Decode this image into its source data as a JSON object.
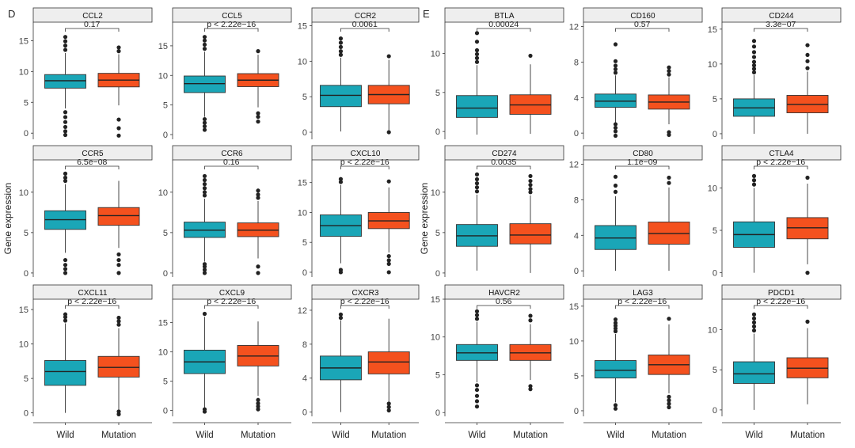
{
  "figure": {
    "colors": {
      "wild": "#1AA6B7",
      "mutation": "#F4511E",
      "strip": "#eeeeee",
      "box_stroke": "#333333"
    },
    "x_labels": [
      "Wild",
      "Mutation"
    ]
  },
  "chart_data": [
    {
      "panel_letter": "D",
      "ylabel": "Gene expression",
      "type": "boxplot",
      "categories": [
        "Wild",
        "Mutation"
      ],
      "facets": [
        {
          "title": "CCL2",
          "pvalue": "0.17",
          "ylim": [
            -1,
            18
          ],
          "ticks": [
            0,
            5,
            10,
            15
          ],
          "boxes": [
            {
              "name": "Wild",
              "q1": 7.3,
              "median": 8.5,
              "q3": 9.5,
              "whisker_low": 4,
              "whisker_high": 13,
              "outliers": [
                -0.3,
                0.3,
                1,
                1.8,
                2.6,
                3.4,
                13.5,
                14.2,
                14.9,
                15.6
              ]
            },
            {
              "name": "Mutation",
              "q1": 7.5,
              "median": 8.6,
              "q3": 9.7,
              "whisker_low": 4.5,
              "whisker_high": 12.8,
              "outliers": [
                -0.4,
                0.8,
                2.2,
                13.3,
                13.9
              ]
            }
          ]
        },
        {
          "title": "CCL5",
          "pvalue": "p < 2.22e−16",
          "ylim": [
            -0.8,
            19
          ],
          "ticks": [
            0,
            5,
            10,
            15
          ],
          "boxes": [
            {
              "name": "Wild",
              "q1": 7.1,
              "median": 8.6,
              "q3": 9.9,
              "whisker_low": 3,
              "whisker_high": 14,
              "outliers": [
                0.8,
                1.4,
                2,
                2.6,
                14.5,
                15.2,
                15.9,
                16.5
              ]
            },
            {
              "name": "Mutation",
              "q1": 8.1,
              "median": 9.2,
              "q3": 10.3,
              "whisker_low": 4.6,
              "whisker_high": 13.5,
              "outliers": [
                2.2,
                3,
                3.6,
                14.1
              ]
            }
          ]
        },
        {
          "title": "CCR2",
          "pvalue": "0.0061",
          "ylim": [
            -1,
            15.5
          ],
          "ticks": [
            0,
            5,
            10,
            15
          ],
          "boxes": [
            {
              "name": "Wild",
              "q1": 3.6,
              "median": 5.2,
              "q3": 6.6,
              "whisker_low": 0.1,
              "whisker_high": 10.5,
              "outliers": [
                10.9,
                11.4,
                12,
                12.6,
                13.2
              ]
            },
            {
              "name": "Mutation",
              "q1": 4,
              "median": 5.3,
              "q3": 6.6,
              "whisker_low": 0.3,
              "whisker_high": 10.2,
              "outliers": [
                0,
                10.7
              ]
            }
          ]
        },
        {
          "title": "CCR5",
          "pvalue": "6.5e−08",
          "ylim": [
            -0.5,
            14
          ],
          "ticks": [
            0,
            5,
            10
          ],
          "boxes": [
            {
              "name": "Wild",
              "q1": 5.4,
              "median": 6.6,
              "q3": 7.7,
              "whisker_low": 2.5,
              "whisker_high": 11,
              "outliers": [
                0,
                0.5,
                1,
                1.6,
                11.4,
                11.8,
                12.3
              ]
            },
            {
              "name": "Mutation",
              "q1": 5.9,
              "median": 7.1,
              "q3": 8.1,
              "whisker_low": 3.1,
              "whisker_high": 11.4,
              "outliers": [
                0,
                1,
                1.6,
                2.3
              ]
            }
          ]
        },
        {
          "title": "CCR6",
          "pvalue": "0.16",
          "ylim": [
            -0.5,
            14
          ],
          "ticks": [
            0,
            5,
            10
          ],
          "boxes": [
            {
              "name": "Wild",
              "q1": 4.4,
              "median": 5.3,
              "q3": 6.3,
              "whisker_low": 1.4,
              "whisker_high": 9.2,
              "outliers": [
                0,
                0.4,
                0.8,
                1.1,
                9.6,
                10,
                10.5,
                11,
                11.5,
                12
              ]
            },
            {
              "name": "Mutation",
              "q1": 4.5,
              "median": 5.3,
              "q3": 6.2,
              "whisker_low": 1.8,
              "whisker_high": 8.9,
              "outliers": [
                0,
                0.8,
                9.3,
                9.7,
                10.2
              ]
            }
          ]
        },
        {
          "title": "CXCL10",
          "pvalue": "p < 2.22e−16",
          "ylim": [
            -0.8,
            18.8
          ],
          "ticks": [
            0,
            5,
            10,
            15
          ],
          "boxes": [
            {
              "name": "Wild",
              "q1": 6,
              "median": 7.8,
              "q3": 9.6,
              "whisker_low": 1.5,
              "whisker_high": 14.6,
              "outliers": [
                0,
                0.4,
                15.1,
                15.6
              ]
            },
            {
              "name": "Mutation",
              "q1": 7.3,
              "median": 8.6,
              "q3": 10,
              "whisker_low": 3.3,
              "whisker_high": 14.2,
              "outliers": [
                0,
                1.4,
                2,
                2.7,
                15.2
              ]
            }
          ]
        },
        {
          "title": "CXCL11",
          "pvalue": "p < 2.22e−16",
          "ylim": [
            -0.5,
            16.5
          ],
          "ticks": [
            0,
            5,
            10,
            15
          ],
          "boxes": [
            {
              "name": "Wild",
              "q1": 4,
              "median": 6,
              "q3": 7.6,
              "whisker_low": 0,
              "whisker_high": 13,
              "outliers": [
                13.4,
                13.9,
                14.3
              ]
            },
            {
              "name": "Mutation",
              "q1": 5.2,
              "median": 6.6,
              "q3": 8.2,
              "whisker_low": 0.5,
              "whisker_high": 12.3,
              "outliers": [
                -0.2,
                0.2,
                12.8,
                13.3,
                13.8
              ]
            }
          ]
        },
        {
          "title": "CXCL9",
          "pvalue": "p < 2.22e−16",
          "ylim": [
            -1,
            19
          ],
          "ticks": [
            0,
            5,
            10,
            15
          ],
          "boxes": [
            {
              "name": "Wild",
              "q1": 6.3,
              "median": 8.3,
              "q3": 10.3,
              "whisker_low": 0.5,
              "whisker_high": 16,
              "outliers": [
                -0.2,
                0.2,
                16.5
              ]
            },
            {
              "name": "Mutation",
              "q1": 7.6,
              "median": 9.3,
              "q3": 11.1,
              "whisker_low": 2.5,
              "whisker_high": 15.2,
              "outliers": [
                0.2,
                0.7,
                1.2,
                1.8
              ]
            }
          ]
        },
        {
          "title": "CXCR3",
          "pvalue": "p < 2.22e−16",
          "ylim": [
            -0.5,
            13.3
          ],
          "ticks": [
            0,
            4,
            8,
            12
          ],
          "boxes": [
            {
              "name": "Wild",
              "q1": 3.8,
              "median": 5.2,
              "q3": 6.6,
              "whisker_low": 0,
              "whisker_high": 10.8,
              "outliers": [
                11.1,
                11.5
              ]
            },
            {
              "name": "Mutation",
              "q1": 4.5,
              "median": 5.9,
              "q3": 7.1,
              "whisker_low": 1.2,
              "whisker_high": 11,
              "outliers": [
                0.2,
                0.6,
                1
              ]
            }
          ]
        }
      ]
    },
    {
      "panel_letter": "E",
      "ylabel": "Gene expression",
      "type": "boxplot",
      "categories": [
        "Wild",
        "Mutation"
      ],
      "facets": [
        {
          "title": "BTLA",
          "pvalue": "0.00024",
          "ylim": [
            -1,
            14
          ],
          "ticks": [
            0,
            5,
            10
          ],
          "boxes": [
            {
              "name": "Wild",
              "q1": 1.8,
              "median": 3,
              "q3": 4.6,
              "whisker_low": -0.4,
              "whisker_high": 8.5,
              "outliers": [
                8.9,
                9.4,
                9.9,
                10.4,
                11.5,
                12.6
              ]
            },
            {
              "name": "Mutation",
              "q1": 2.2,
              "median": 3.4,
              "q3": 4.7,
              "whisker_low": -0.3,
              "whisker_high": 8.6,
              "outliers": [
                9.7
              ]
            }
          ]
        },
        {
          "title": "CD160",
          "pvalue": "0.57",
          "ylim": [
            -0.7,
            12.5
          ],
          "ticks": [
            0,
            4,
            8,
            12
          ],
          "boxes": [
            {
              "name": "Wild",
              "q1": 2.9,
              "median": 3.6,
              "q3": 4.4,
              "whisker_low": 1.1,
              "whisker_high": 6.5,
              "outliers": [
                -0.3,
                0.2,
                0.6,
                1,
                6.8,
                7.2,
                7.6,
                8.1,
                10
              ]
            },
            {
              "name": "Mutation",
              "q1": 2.7,
              "median": 3.5,
              "q3": 4.3,
              "whisker_low": 1,
              "whisker_high": 6.3,
              "outliers": [
                -0.2,
                0.1,
                6.6,
                7,
                7.4
              ]
            }
          ]
        },
        {
          "title": "CD244",
          "pvalue": "3.3e−07",
          "ylim": [
            -0.8,
            16
          ],
          "ticks": [
            0,
            5,
            10,
            15
          ],
          "boxes": [
            {
              "name": "Wild",
              "q1": 2.5,
              "median": 3.7,
              "q3": 5,
              "whisker_low": 0,
              "whisker_high": 8.4,
              "outliers": [
                8.8,
                9.3,
                9.8,
                10.3,
                11,
                11.7,
                12.5,
                13.3
              ]
            },
            {
              "name": "Mutation",
              "q1": 3,
              "median": 4.2,
              "q3": 5.5,
              "whisker_low": 0,
              "whisker_high": 8.9,
              "outliers": [
                9.4,
                10.4,
                11.3,
                12.7
              ]
            }
          ]
        },
        {
          "title": "CD274",
          "pvalue": "0.0035",
          "ylim": [
            -0.5,
            14
          ],
          "ticks": [
            0,
            5,
            10
          ],
          "boxes": [
            {
              "name": "Wild",
              "q1": 3.3,
              "median": 4.6,
              "q3": 6,
              "whisker_low": 0.3,
              "whisker_high": 9.7,
              "outliers": [
                10.1,
                10.6,
                11.1,
                11.6,
                12.2
              ]
            },
            {
              "name": "Mutation",
              "q1": 3.6,
              "median": 4.7,
              "q3": 6.1,
              "whisker_low": 0,
              "whisker_high": 9.6,
              "outliers": [
                10,
                10.4,
                10.9,
                11.4,
                12
              ]
            }
          ]
        },
        {
          "title": "CD80",
          "pvalue": "1.1e−09",
          "ylim": [
            -0.7,
            12.5
          ],
          "ticks": [
            0,
            4,
            8,
            12
          ],
          "boxes": [
            {
              "name": "Wild",
              "q1": 2.4,
              "median": 3.7,
              "q3": 5.1,
              "whisker_low": 0,
              "whisker_high": 8.4,
              "outliers": [
                8.9,
                9.6,
                10.6
              ]
            },
            {
              "name": "Mutation",
              "q1": 3,
              "median": 4.2,
              "q3": 5.5,
              "whisker_low": 0,
              "whisker_high": 9.4,
              "outliers": [
                9.9,
                10.5
              ]
            }
          ]
        },
        {
          "title": "CTLA4",
          "pvalue": "p < 2.22e−16",
          "ylim": [
            -0.5,
            13.3
          ],
          "ticks": [
            0,
            5,
            10
          ],
          "boxes": [
            {
              "name": "Wild",
              "q1": 3,
              "median": 4.5,
              "q3": 6,
              "whisker_low": 0,
              "whisker_high": 10,
              "outliers": [
                10.4,
                10.9,
                11.4
              ]
            },
            {
              "name": "Mutation",
              "q1": 4,
              "median": 5.3,
              "q3": 6.5,
              "whisker_low": 1,
              "whisker_high": 10.5,
              "outliers": [
                0,
                11.2
              ]
            }
          ]
        },
        {
          "title": "HAVCR2",
          "pvalue": "0.56",
          "ylim": [
            -0.5,
            15
          ],
          "ticks": [
            0,
            5,
            10,
            15
          ],
          "boxes": [
            {
              "name": "Wild",
              "q1": 6.9,
              "median": 7.9,
              "q3": 9,
              "whisker_low": 4,
              "whisker_high": 12,
              "outliers": [
                0.8,
                1.5,
                2.2,
                3,
                3.6,
                12.4,
                12.9,
                13.4
              ]
            },
            {
              "name": "Mutation",
              "q1": 6.9,
              "median": 7.9,
              "q3": 9,
              "whisker_low": 4.3,
              "whisker_high": 11.7,
              "outliers": [
                3.1,
                3.5,
                12.2,
                12.8
              ]
            }
          ]
        },
        {
          "title": "LAG3",
          "pvalue": "p < 2.22e−16",
          "ylim": [
            -0.8,
            16
          ],
          "ticks": [
            0,
            5,
            10,
            15
          ],
          "boxes": [
            {
              "name": "Wild",
              "q1": 4.7,
              "median": 5.8,
              "q3": 7.2,
              "whisker_low": 1.2,
              "whisker_high": 11,
              "outliers": [
                0.3,
                0.8,
                11.4,
                11.8,
                12.2,
                12.6,
                13.1
              ]
            },
            {
              "name": "Mutation",
              "q1": 5.2,
              "median": 6.6,
              "q3": 8,
              "whisker_low": 2.5,
              "whisker_high": 12.4,
              "outliers": [
                0.5,
                1,
                1.5,
                2,
                13.2
              ]
            }
          ]
        },
        {
          "title": "PDCD1",
          "pvalue": "p < 2.22e−16",
          "ylim": [
            -0.8,
            13.8
          ],
          "ticks": [
            0,
            5,
            10
          ],
          "boxes": [
            {
              "name": "Wild",
              "q1": 3.3,
              "median": 4.5,
              "q3": 6,
              "whisker_low": 0,
              "whisker_high": 9.5,
              "outliers": [
                9.9,
                10.4,
                10.9,
                11.4,
                11.9
              ]
            },
            {
              "name": "Mutation",
              "q1": 4,
              "median": 5.2,
              "q3": 6.5,
              "whisker_low": 0.7,
              "whisker_high": 10.2,
              "outliers": [
                11
              ]
            }
          ]
        }
      ]
    }
  ]
}
